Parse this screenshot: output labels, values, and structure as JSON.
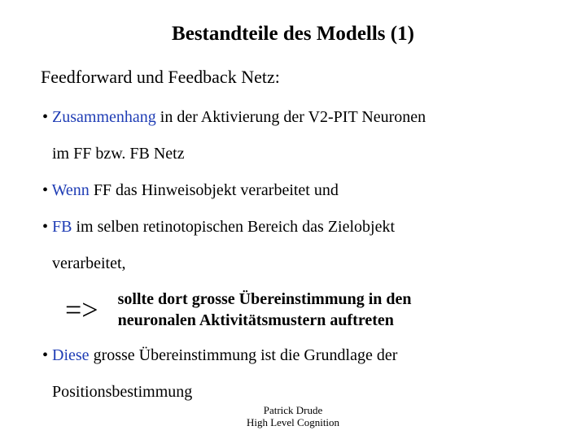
{
  "title": "Bestandteile des Modells (1)",
  "subtitle": "Feedforward und Feedback Netz:",
  "bullets": {
    "b1_blue": "Zusammenhang",
    "b1_rest": " in der Aktivierung der V2-PIT Neuronen",
    "b1_cont": "im FF bzw. FB Netz",
    "b2_blue": "Wenn",
    "b2_rest": " FF das Hinweisobjekt verarbeitet und",
    "b3_blue": "FB",
    "b3_rest": " im selben retinotopischen Bereich das Zielobjekt",
    "b3_cont": "verarbeitet,",
    "arrow": "=>",
    "arrow_line1": "sollte dort grosse Übereinstimmung in den",
    "arrow_line2": "neuronalen Aktivitätsmustern auftreten",
    "b4_blue": "Diese",
    "b4_rest": " grosse Übereinstimmung ist die Grundlage der",
    "b4_cont": "Positionsbestimmung"
  },
  "footer": {
    "line1": "Patrick Drude",
    "line2": "High Level Cognition"
  },
  "colors": {
    "text": "#000000",
    "accent": "#1f3db5",
    "background": "#ffffff"
  },
  "typography": {
    "family": "Times New Roman",
    "title_size_pt": 25,
    "subtitle_size_pt": 22,
    "body_size_pt": 20,
    "arrow_size_pt": 36,
    "footer_size_pt": 13
  },
  "bullet_char": "•"
}
